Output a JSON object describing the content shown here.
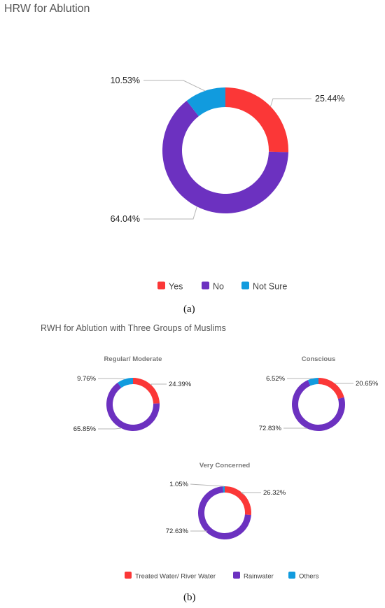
{
  "figure": {
    "caption_a": "(a)",
    "caption_b": "(b)",
    "section_b_title": "RWH for Ablution with Three Groups of Muslims"
  },
  "colors": {
    "red": "#fb3737",
    "purple": "#6c31c0",
    "blue": "#119bde",
    "leader": "#b5b5b5"
  },
  "chart_data": [
    {
      "type": "pie",
      "title": "HRW for Ablution",
      "categories": [
        "Yes",
        "No",
        "Not Sure"
      ],
      "values": [
        25.44,
        64.04,
        10.53
      ],
      "labels": [
        "25.44%",
        "64.04%",
        "10.53%"
      ],
      "colors": [
        "#fb3737",
        "#6c31c0",
        "#119bde"
      ],
      "legend": "bottom"
    },
    {
      "type": "pie",
      "title": "Regular/ Moderate",
      "categories": [
        "Treated Water/ River Water",
        "Rainwater",
        "Others"
      ],
      "values": [
        24.39,
        65.85,
        9.76
      ],
      "labels": [
        "24.39%",
        "65.85%",
        "9.76%"
      ],
      "colors": [
        "#fb3737",
        "#6c31c0",
        "#119bde"
      ]
    },
    {
      "type": "pie",
      "title": "Conscious",
      "categories": [
        "Treated Water/ River Water",
        "Rainwater",
        "Others"
      ],
      "values": [
        20.65,
        72.83,
        6.52
      ],
      "labels": [
        "20.65%",
        "72.83%",
        "6.52%"
      ],
      "colors": [
        "#fb3737",
        "#6c31c0",
        "#119bde"
      ]
    },
    {
      "type": "pie",
      "title": "Very Concerned",
      "categories": [
        "Treated Water/ River Water",
        "Rainwater",
        "Others"
      ],
      "values": [
        26.32,
        72.63,
        1.05
      ],
      "labels": [
        "26.32%",
        "72.63%",
        "1.05%"
      ],
      "colors": [
        "#fb3737",
        "#6c31c0",
        "#119bde"
      ],
      "legend": "bottom"
    }
  ]
}
